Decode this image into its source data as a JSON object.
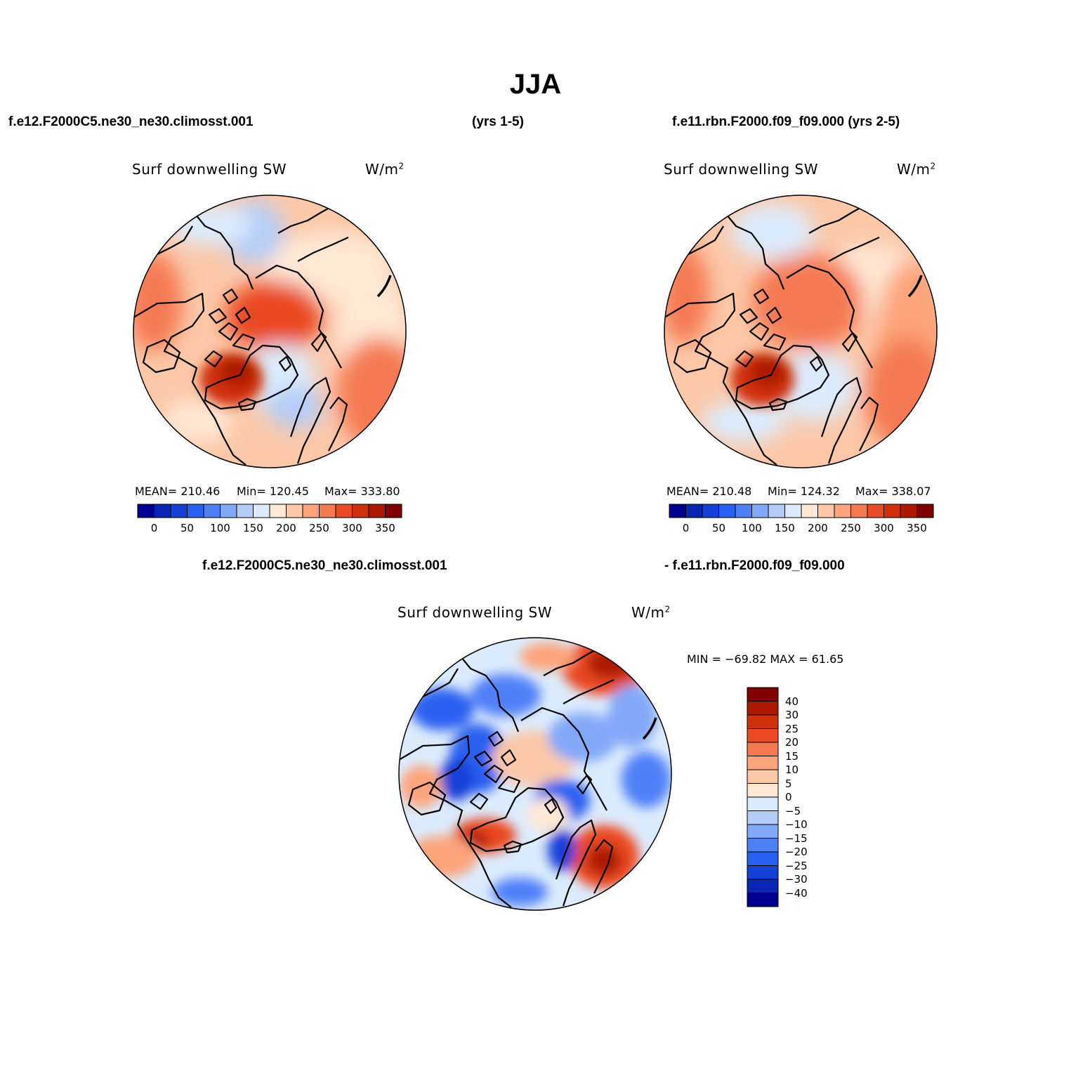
{
  "title": "JJA",
  "header": {
    "case1": "f.e12.F2000C5.ne30_ne30.climosst.001",
    "yrs1": "(yrs 1-5)",
    "case2": "f.e11.rbn.F2000.f09_f09.000 (yrs 2-5)"
  },
  "diff_header": {
    "left": "f.e12.F2000C5.ne30_ne30.climosst.001",
    "right": "- f.e11.rbn.F2000.f09_f09.000"
  },
  "chart_data": [
    {
      "type": "heatmap",
      "projection": "north polar stereographic",
      "title": "Surf downwelling SW",
      "units": "W/m²",
      "mean_label": "MEAN= 210.46",
      "min_label": "Min= 120.45",
      "max_label": "Max= 333.80",
      "stats": {
        "mean": 210.46,
        "min": 120.45,
        "max": 333.8
      },
      "levels": [
        0,
        25,
        50,
        75,
        100,
        125,
        150,
        175,
        200,
        225,
        250,
        275,
        300,
        325,
        350
      ],
      "tick_labels": [
        "0",
        "50",
        "100",
        "150",
        "200",
        "250",
        "300",
        "350"
      ],
      "colors": [
        "#000090",
        "#0a24b4",
        "#1440d8",
        "#2a60f0",
        "#4f80f8",
        "#82a8f8",
        "#b4ccf8",
        "#dcebfc",
        "#fee8d4",
        "#fcc8a8",
        "#fca47c",
        "#f57a52",
        "#ea4a24",
        "#d0300c",
        "#ad1a04",
        "#800000"
      ]
    },
    {
      "type": "heatmap",
      "projection": "north polar stereographic",
      "title": "Surf downwelling SW",
      "units": "W/m²",
      "mean_label": "MEAN= 210.48",
      "min_label": "Min= 124.32",
      "max_label": "Max= 338.07",
      "stats": {
        "mean": 210.48,
        "min": 124.32,
        "max": 338.07
      },
      "levels": [
        0,
        25,
        50,
        75,
        100,
        125,
        150,
        175,
        200,
        225,
        250,
        275,
        300,
        325,
        350
      ],
      "tick_labels": [
        "0",
        "50",
        "100",
        "150",
        "200",
        "250",
        "300",
        "350"
      ],
      "colors": [
        "#000090",
        "#0a24b4",
        "#1440d8",
        "#2a60f0",
        "#4f80f8",
        "#82a8f8",
        "#b4ccf8",
        "#dcebfc",
        "#fee8d4",
        "#fcc8a8",
        "#fca47c",
        "#f57a52",
        "#ea4a24",
        "#d0300c",
        "#ad1a04",
        "#800000"
      ]
    },
    {
      "type": "heatmap",
      "projection": "north polar stereographic",
      "title": "Surf downwelling SW",
      "units": "W/m²",
      "minmax_label": "MIN = −69.82 MAX =   61.65",
      "stats": {
        "min": -69.82,
        "max": 61.65
      },
      "levels": [
        -40,
        -30,
        -25,
        -20,
        -15,
        -10,
        -5,
        0,
        5,
        10,
        15,
        20,
        25,
        30,
        40
      ],
      "tick_labels": [
        "40",
        "30",
        "25",
        "20",
        "15",
        "10",
        "5",
        "0",
        "−5",
        "−10",
        "−15",
        "−20",
        "−25",
        "−30",
        "−40"
      ],
      "colors": [
        "#000090",
        "#0a24b4",
        "#1440d8",
        "#2a60f0",
        "#4f80f8",
        "#82a8f8",
        "#b4ccf8",
        "#dcebfc",
        "#fee8d4",
        "#fcc8a8",
        "#fca47c",
        "#f57a52",
        "#ea4a24",
        "#d0300c",
        "#ad1a04",
        "#800000"
      ]
    }
  ]
}
